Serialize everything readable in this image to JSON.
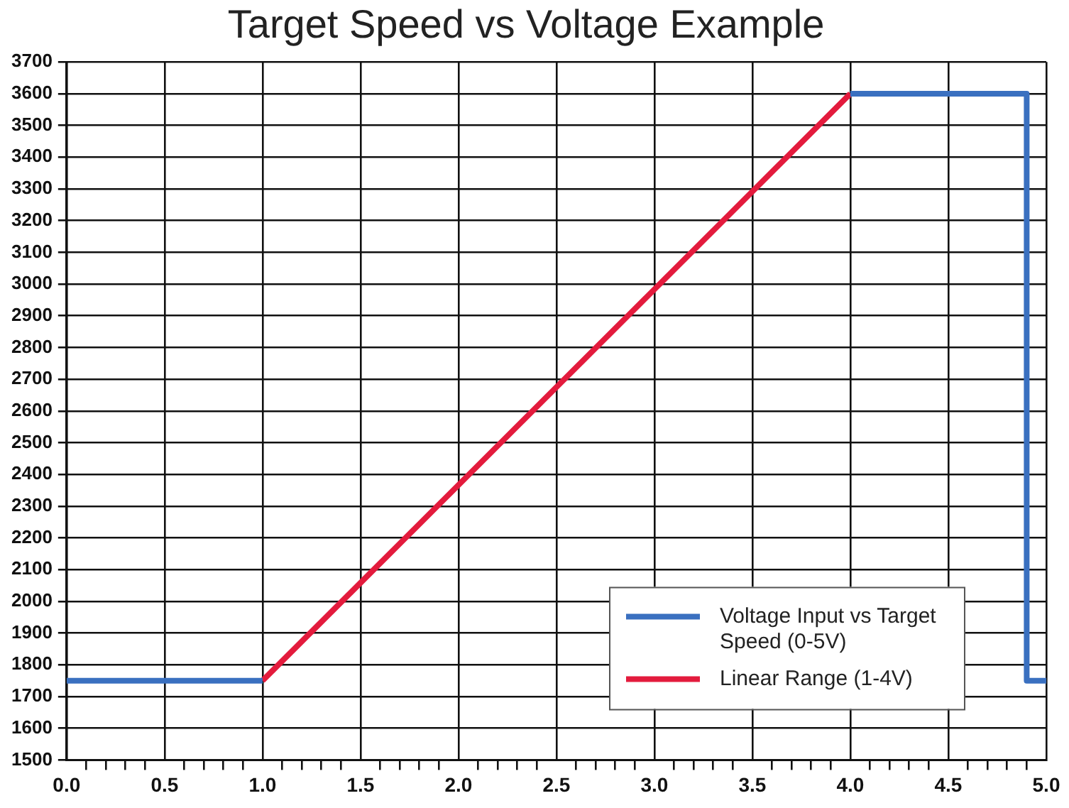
{
  "chart_data": {
    "type": "line",
    "title": "Target Speed vs Voltage Example",
    "series": [
      {
        "name": "Voltage Input vs Target Speed (0-5V)",
        "color": "#3a70c0",
        "x": [
          0,
          1,
          2.5,
          4,
          4.9,
          4.9,
          5
        ],
        "values": [
          1750,
          1750,
          null,
          3600,
          3600,
          1750,
          1750
        ]
      },
      {
        "name": "Linear Range (1-4V)",
        "color": "#e31b3d",
        "x": [
          1,
          4
        ],
        "values": [
          1750,
          3600
        ]
      }
    ],
    "xlim": [
      0,
      5
    ],
    "xticks": [
      {
        "value": 0,
        "label": "0.0"
      },
      {
        "value": 0.1,
        "label": null
      },
      {
        "value": 0.2,
        "label": null
      },
      {
        "value": 0.3,
        "label": null
      },
      {
        "value": 0.4,
        "label": null
      },
      {
        "value": 0.5,
        "label": "0.5"
      },
      {
        "value": 0.6,
        "label": null
      },
      {
        "value": 0.7,
        "label": null
      },
      {
        "value": 0.8,
        "label": null
      },
      {
        "value": 0.9,
        "label": null
      },
      {
        "value": 1,
        "label": "1.0"
      },
      {
        "value": 1.1,
        "label": null
      },
      {
        "value": 1.2,
        "label": null
      },
      {
        "value": 1.3,
        "label": null
      },
      {
        "value": 1.4,
        "label": null
      },
      {
        "value": 1.5,
        "label": "1.5"
      },
      {
        "value": 1.6,
        "label": null
      },
      {
        "value": 1.7,
        "label": null
      },
      {
        "value": 1.8,
        "label": null
      },
      {
        "value": 1.9,
        "label": null
      },
      {
        "value": 2,
        "label": "2.0"
      },
      {
        "value": 2.1,
        "label": null
      },
      {
        "value": 2.2,
        "label": null
      },
      {
        "value": 2.3,
        "label": null
      },
      {
        "value": 2.4,
        "label": null
      },
      {
        "value": 2.5,
        "label": "2.5"
      },
      {
        "value": 2.6,
        "label": null
      },
      {
        "value": 2.7,
        "label": null
      },
      {
        "value": 2.8,
        "label": null
      },
      {
        "value": 2.9,
        "label": null
      },
      {
        "value": 3,
        "label": "3.0"
      },
      {
        "value": 3.1,
        "label": null
      },
      {
        "value": 3.2,
        "label": null
      },
      {
        "value": 3.3,
        "label": null
      },
      {
        "value": 3.4,
        "label": null
      },
      {
        "value": 3.5,
        "label": "3.5"
      },
      {
        "value": 3.6,
        "label": null
      },
      {
        "value": 3.7,
        "label": null
      },
      {
        "value": 3.8,
        "label": null
      },
      {
        "value": 3.9,
        "label": null
      },
      {
        "value": 4,
        "label": "4.0"
      },
      {
        "value": 4.1,
        "label": null
      },
      {
        "value": 4.2,
        "label": null
      },
      {
        "value": 4.3,
        "label": null
      },
      {
        "value": 4.4,
        "label": null
      },
      {
        "value": 4.5,
        "label": "4.5"
      },
      {
        "value": 4.6,
        "label": null
      },
      {
        "value": 4.7,
        "label": null
      },
      {
        "value": 4.8,
        "label": null
      },
      {
        "value": 4.9,
        "label": null
      },
      {
        "value": 5,
        "label": "5.0"
      }
    ],
    "ylim": [
      1500,
      3700
    ],
    "yticks": [
      1500,
      1600,
      1700,
      1800,
      1900,
      2000,
      2100,
      2200,
      2300,
      2400,
      2500,
      2600,
      2700,
      2800,
      2900,
      3000,
      3100,
      3200,
      3300,
      3400,
      3500,
      3600,
      3700
    ],
    "grid": true,
    "legend": "bottom right",
    "marker": "none",
    "line_style": "solid"
  }
}
